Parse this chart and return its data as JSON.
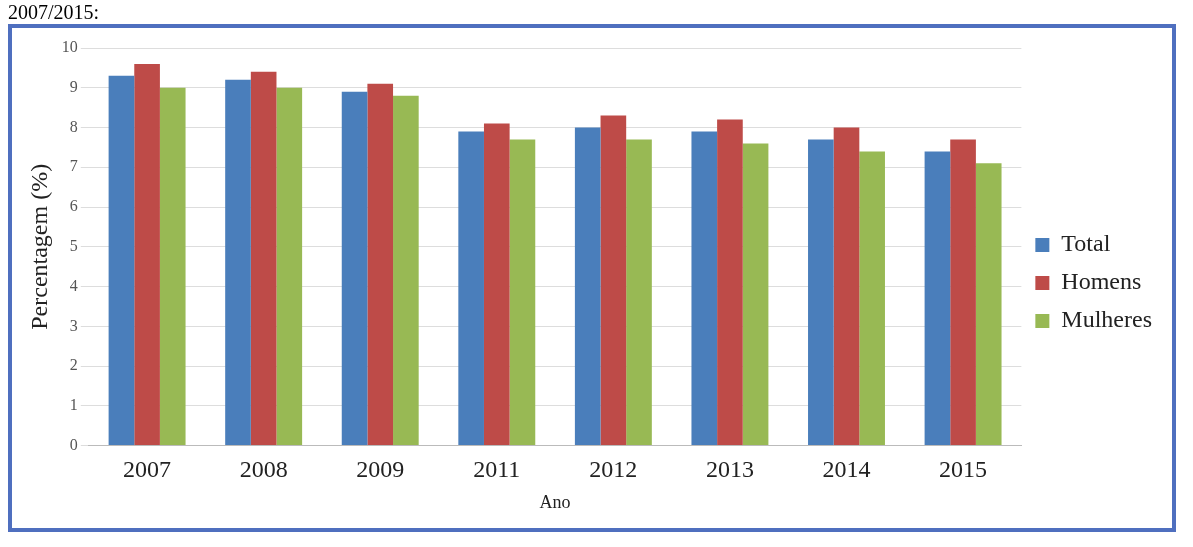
{
  "chart_data": {
    "type": "bar",
    "xlabel": "Ano",
    "ylabel": "Percentagem (%)",
    "annotations": [
      "2007/2015:"
    ],
    "categories": [
      "2007",
      "2008",
      "2009",
      "2011",
      "2012",
      "2013",
      "2014",
      "2015"
    ],
    "series": [
      {
        "name": "Total",
        "color": "#4a7ebb",
        "values": [
          9.3,
          9.2,
          8.9,
          7.9,
          8.0,
          7.9,
          7.7,
          7.4
        ]
      },
      {
        "name": "Homens",
        "color": "#be4b48",
        "values": [
          9.6,
          9.4,
          9.1,
          8.1,
          8.3,
          8.2,
          8.0,
          7.7
        ]
      },
      {
        "name": "Mulheres",
        "color": "#98b954",
        "values": [
          9.0,
          9.0,
          8.8,
          7.7,
          7.7,
          7.6,
          7.4,
          7.1
        ]
      }
    ],
    "ylim": [
      0,
      10
    ],
    "yticks": [
      0,
      1,
      2,
      3,
      4,
      5,
      6,
      7,
      8,
      9,
      10
    ],
    "grid": "y",
    "legend": "right"
  }
}
